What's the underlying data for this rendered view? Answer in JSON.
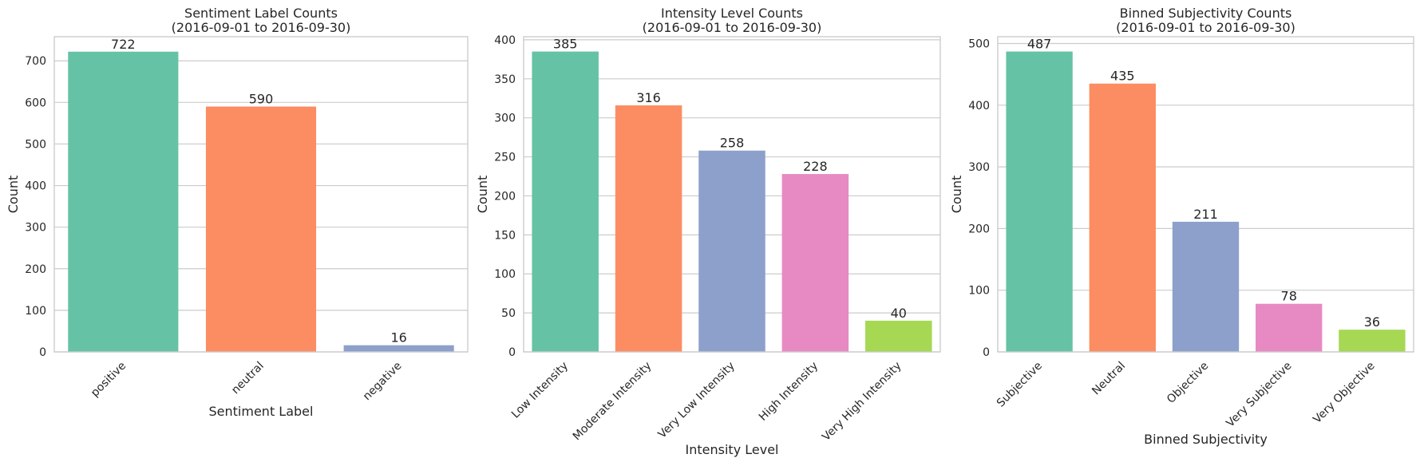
{
  "colors": [
    "#66c2a5",
    "#fc8d62",
    "#8da0cb",
    "#e78ac3",
    "#a6d854"
  ],
  "chart_data": [
    {
      "type": "bar",
      "title": "Sentiment Label Counts\n(2016-09-01 to 2016-09-30)",
      "xlabel": "Sentiment Label",
      "ylabel": "Count",
      "categories": [
        "positive",
        "neutral",
        "negative"
      ],
      "values": [
        722,
        590,
        16
      ],
      "ylim": [
        0,
        758
      ],
      "yticks": [
        0,
        100,
        200,
        300,
        400,
        500,
        600,
        700
      ],
      "grid": true
    },
    {
      "type": "bar",
      "title": "Intensity Level Counts\n(2016-09-01 to 2016-09-30)",
      "xlabel": "Intensity Level",
      "ylabel": "Count",
      "categories": [
        "Low Intensity",
        "Moderate Intensity",
        "Very Low Intensity",
        "High Intensity",
        "Very High Intensity"
      ],
      "values": [
        385,
        316,
        258,
        228,
        40
      ],
      "ylim": [
        0,
        404
      ],
      "yticks": [
        0,
        50,
        100,
        150,
        200,
        250,
        300,
        350,
        400
      ],
      "grid": true
    },
    {
      "type": "bar",
      "title": "Binned Subjectivity Counts\n(2016-09-01 to 2016-09-30)",
      "xlabel": "Binned Subjectivity",
      "ylabel": "Count",
      "categories": [
        "Subjective",
        "Neutral",
        "Objective",
        "Very Subjective",
        "Very Objective"
      ],
      "values": [
        487,
        435,
        211,
        78,
        36
      ],
      "ylim": [
        0,
        511
      ],
      "yticks": [
        0,
        100,
        200,
        300,
        400,
        500
      ],
      "grid": true
    }
  ]
}
